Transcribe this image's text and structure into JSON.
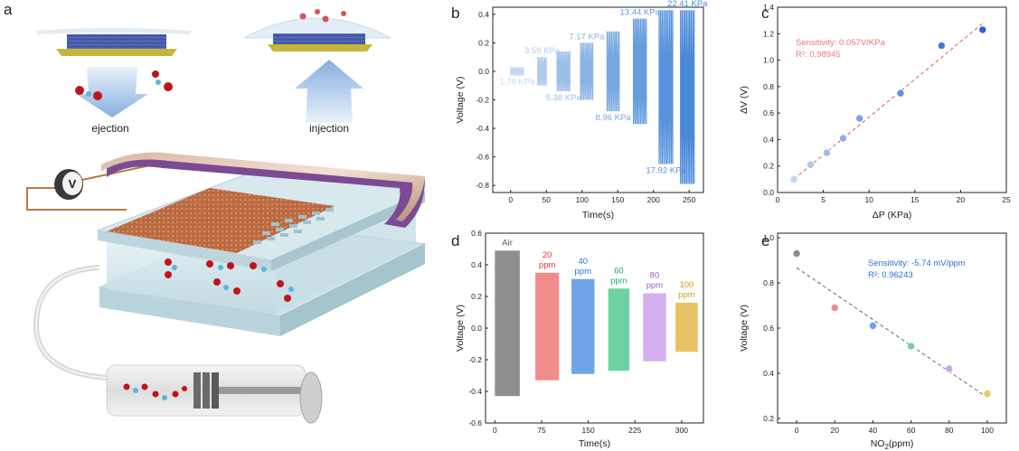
{
  "panel_labels": {
    "a": "a",
    "b": "b",
    "c": "c",
    "d": "d",
    "e": "e"
  },
  "illustration": {
    "ejection_label": "ejection",
    "injection_label": "injection",
    "meter_label": "V",
    "colors": {
      "fabric_top": "#b86a43",
      "film": "#7b4a93",
      "plate": "#cfe3ea",
      "molecule_red": "#c0141c",
      "molecule_blue": "#5ab7dc"
    }
  },
  "chart_data": [
    {
      "id": "b",
      "type": "line",
      "xlabel": "Time(s)",
      "ylabel": "Voltage (V)",
      "xlim": [
        -25,
        270
      ],
      "ylim": [
        -0.85,
        0.45
      ],
      "xticks": [
        0,
        50,
        100,
        150,
        200,
        250
      ],
      "yticks": [
        -0.8,
        -0.6,
        -0.4,
        -0.2,
        0.0,
        0.2,
        0.4
      ],
      "ytick_labels": [
        "-0.8",
        "-0.6",
        "-0.4",
        "-0.2",
        "0.0",
        "0.2",
        "0.4"
      ],
      "segments": [
        {
          "label": "1.79 KPa",
          "x_start": 0,
          "x_end": 18,
          "y_max": 0.03,
          "y_min": -0.03,
          "label_pos": "below",
          "color": "#c2d9f1"
        },
        {
          "label": "3.59 KPa",
          "x_start": 38,
          "x_end": 50,
          "y_max": 0.1,
          "y_min": -0.1,
          "label_pos": "above",
          "color": "#aecbee"
        },
        {
          "label": "5.38 KPa",
          "x_start": 65,
          "x_end": 83,
          "y_max": 0.14,
          "y_min": -0.14,
          "label_pos": "below",
          "color": "#9dc0ea"
        },
        {
          "label": "7.17 KPa",
          "x_start": 98,
          "x_end": 115,
          "y_max": 0.2,
          "y_min": -0.2,
          "label_pos": "above",
          "color": "#8ab3e6"
        },
        {
          "label": "8.96 KPa",
          "x_start": 135,
          "x_end": 152,
          "y_max": 0.28,
          "y_min": -0.28,
          "label_pos": "below",
          "color": "#78a7e2"
        },
        {
          "label": "13.44 KPa",
          "x_start": 172,
          "x_end": 190,
          "y_max": 0.37,
          "y_min": -0.37,
          "label_pos": "above",
          "color": "#679cdf"
        },
        {
          "label": "17.92 KPa",
          "x_start": 208,
          "x_end": 227,
          "y_max": 0.43,
          "y_min": -0.65,
          "label_pos": "below",
          "color": "#5892dc"
        },
        {
          "label": "22.41 KPa",
          "x_start": 238,
          "x_end": 257,
          "y_max": 0.43,
          "y_min": -0.79,
          "label_pos": "above",
          "color": "#4a88d8"
        }
      ]
    },
    {
      "id": "c",
      "type": "scatter",
      "xlabel": "ΔP (KPa)",
      "ylabel": "ΔV (V)",
      "xlim": [
        0,
        25
      ],
      "ylim": [
        0,
        1.4
      ],
      "xticks": [
        0,
        5,
        10,
        15,
        20,
        25
      ],
      "yticks": [
        0.0,
        0.2,
        0.4,
        0.6,
        0.8,
        1.0,
        1.2,
        1.4
      ],
      "ytick_labels": [
        "0.0",
        "0.2",
        "0.4",
        "0.6",
        "0.8",
        "1.0",
        "1.2",
        "1.4"
      ],
      "x": [
        1.79,
        3.59,
        5.38,
        7.17,
        8.96,
        13.44,
        17.92,
        22.41
      ],
      "y": [
        0.1,
        0.21,
        0.3,
        0.41,
        0.56,
        0.75,
        1.11,
        1.23
      ],
      "point_colors": [
        "#c3d7f2",
        "#aec8ee",
        "#9dbcea",
        "#8ab0e5",
        "#78a3e1",
        "#5b8fdb",
        "#3f79d2",
        "#2b66c8"
      ],
      "fit": {
        "slope": 0.057,
        "intercept": 0.0,
        "x_range": [
          1.79,
          22.41
        ],
        "color": "#e16a6a"
      },
      "annotation": [
        "Sensitivity: 0.057V/KPa",
        "R²: 0.98945"
      ],
      "annotation_color": "#e8797c"
    },
    {
      "id": "d",
      "type": "bar",
      "xlabel": "Time(s)",
      "ylabel": "Voltage (V)",
      "xlim": [
        -15,
        335
      ],
      "ylim": [
        -0.6,
        0.6
      ],
      "xticks": [
        0,
        75,
        150,
        225,
        300
      ],
      "yticks": [
        -0.6,
        -0.4,
        -0.2,
        0.0,
        0.2,
        0.4,
        0.6
      ],
      "ytick_labels": [
        "-0.6",
        "-0.4",
        "-0.2",
        "0.0",
        "0.2",
        "0.4",
        "0.6"
      ],
      "bands": [
        {
          "label": [
            "Air"
          ],
          "x_start": 0,
          "x_end": 40,
          "y_max": 0.49,
          "y_min": -0.43,
          "color": "#8f8f8f",
          "label_color": "#555555"
        },
        {
          "label": [
            "20",
            "ppm"
          ],
          "x_start": 65,
          "x_end": 103,
          "y_max": 0.35,
          "y_min": -0.33,
          "color": "#f28c8a",
          "label_color": "#e2353a"
        },
        {
          "label": [
            "40",
            "ppm"
          ],
          "x_start": 123,
          "x_end": 160,
          "y_max": 0.31,
          "y_min": -0.29,
          "color": "#6fa4e8",
          "label_color": "#2a6fd4"
        },
        {
          "label": [
            "60",
            "ppm"
          ],
          "x_start": 182,
          "x_end": 216,
          "y_max": 0.25,
          "y_min": -0.27,
          "color": "#6cd2a2",
          "label_color": "#22a36a"
        },
        {
          "label": [
            "80",
            "ppm"
          ],
          "x_start": 238,
          "x_end": 275,
          "y_max": 0.22,
          "y_min": -0.21,
          "color": "#d5b0ef",
          "label_color": "#9a5cc8"
        },
        {
          "label": [
            "100",
            "ppm"
          ],
          "x_start": 290,
          "x_end": 326,
          "y_max": 0.16,
          "y_min": -0.15,
          "color": "#e8c366",
          "label_color": "#d69a18"
        }
      ]
    },
    {
      "id": "e",
      "type": "scatter",
      "xlabel": "NO2(ppm)",
      "xlabel_parts": [
        "NO",
        "2",
        "(ppm)"
      ],
      "ylabel": "Voltage (V)",
      "xlim": [
        -10,
        110
      ],
      "ylim": [
        0.18,
        1.02
      ],
      "xticks": [
        0,
        20,
        40,
        60,
        80,
        100
      ],
      "yticks": [
        0.2,
        0.4,
        0.6,
        0.8,
        1.0
      ],
      "ytick_labels": [
        "0.2",
        "0.4",
        "0.6",
        "0.8",
        "1.0"
      ],
      "x": [
        0,
        20,
        40,
        60,
        80,
        100
      ],
      "y": [
        0.93,
        0.69,
        0.61,
        0.52,
        0.42,
        0.31
      ],
      "point_colors": [
        "#8a8a8a",
        "#f08a8c",
        "#6fa4e8",
        "#6cd2a2",
        "#c9a2ec",
        "#edc85c"
      ],
      "fit": {
        "slope": -0.00574,
        "intercept": 0.867,
        "x_range": [
          0,
          100
        ],
        "color": "#777777"
      },
      "annotation": [
        "Sensitivity: -5.74 mV/ppm",
        "R²: 0.96243"
      ],
      "annotation_color": "#2f6fd6"
    }
  ]
}
